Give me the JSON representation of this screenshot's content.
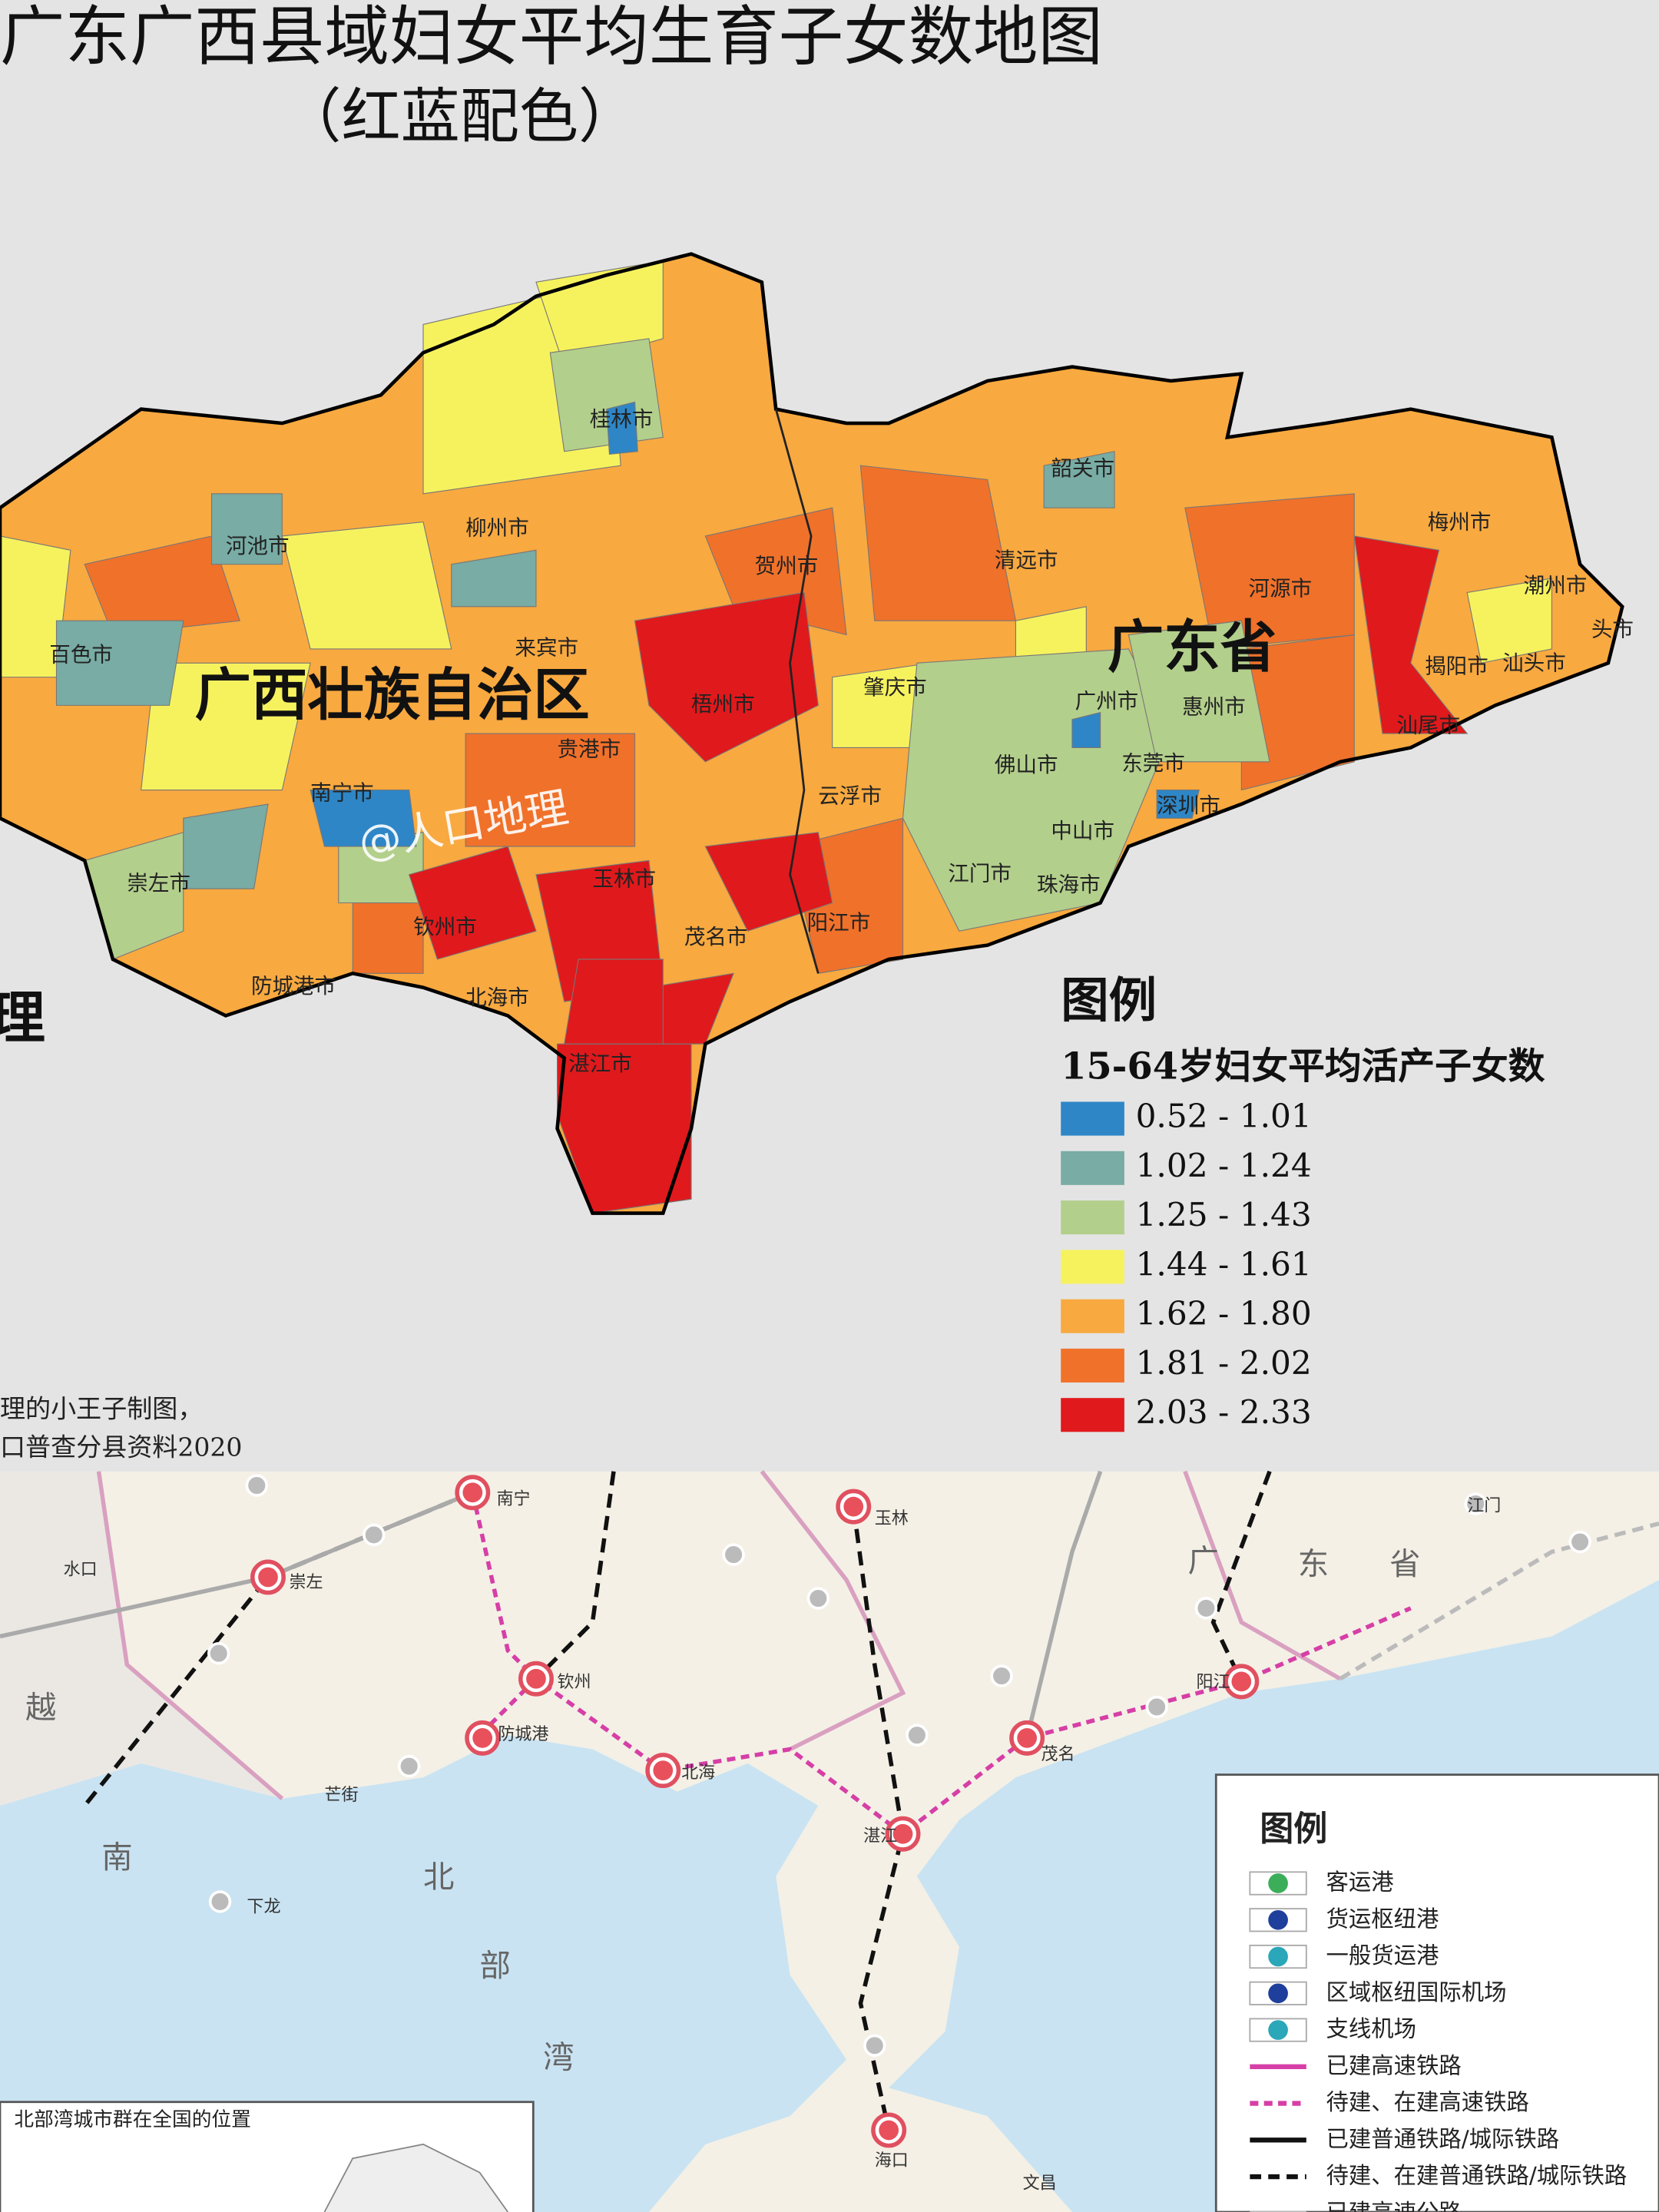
{
  "top_map": {
    "title": "广东广西县域妇女平均生育子女数地图",
    "subtitle": "（红蓝配色）",
    "regions": [
      "广西壮族自治区",
      "广东省"
    ],
    "cities": [
      "桂林市",
      "柳州市",
      "河池市",
      "百色市",
      "来宾市",
      "贺州市",
      "梧州市",
      "贵港市",
      "南宁市",
      "崇左市",
      "钦州市",
      "防城港市",
      "北海市",
      "玉林市",
      "茂名市",
      "湛江市",
      "阳江市",
      "云浮市",
      "肇庆市",
      "清远市",
      "韶关市",
      "河源市",
      "梅州市",
      "潮州市",
      "揭阳市",
      "汕头市",
      "头市",
      "汕尾市",
      "惠州市",
      "广州市",
      "佛山市",
      "东莞市",
      "深圳市",
      "中山市",
      "江门市",
      "珠海市"
    ],
    "legend": {
      "title": "图例",
      "subtitle": "15-64岁妇女平均活产子女数",
      "items": [
        {
          "label": "0.52 - 1.01",
          "color": "#2e86c6"
        },
        {
          "label": "1.02 - 1.24",
          "color": "#78aca4"
        },
        {
          "label": "1.25 - 1.43",
          "color": "#b3cf8c"
        },
        {
          "label": "1.44 - 1.61",
          "color": "#f6f25e"
        },
        {
          "label": "1.62 - 1.80",
          "color": "#f8a940"
        },
        {
          "label": "1.81 - 2.02",
          "color": "#f0712a"
        },
        {
          "label": "2.03 - 2.33",
          "color": "#e0191c"
        }
      ]
    },
    "watermark": "@人口地理",
    "edge_text": "理",
    "credits": [
      "理的小王子制图，",
      "口普查分县资料2020"
    ]
  },
  "bottom_map": {
    "places": [
      "南宁",
      "玉林",
      "崇左",
      "钦州",
      "防城港",
      "北海",
      "湛江",
      "茂名",
      "阳江",
      "海口",
      "江门",
      "广",
      "东",
      "省",
      "越",
      "南",
      "北",
      "部",
      "湾",
      "水口",
      "芒街",
      "下龙",
      "文昌"
    ],
    "legend": {
      "title": "图例",
      "items": [
        "客运港",
        "货运枢纽港",
        "一般货运港",
        "区域枢纽国际机场",
        "支线机场",
        "已建高速铁路",
        "待建、在建高速铁路",
        "已建普通铁路/城际铁路",
        "待建、在建普通铁路/城际铁路",
        "已建高速公路"
      ]
    },
    "inset_title": "北部湾城市群在全国的位置"
  }
}
